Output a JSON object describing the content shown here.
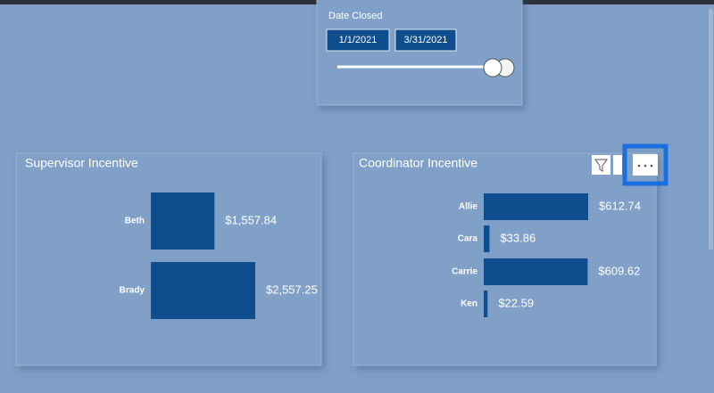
{
  "slicer": {
    "title": "Date Closed",
    "start": "1/1/2021",
    "end": "3/31/2021"
  },
  "chart_data": [
    {
      "type": "bar",
      "orientation": "horizontal",
      "title": "Supervisor Incentive",
      "categories": [
        "Beth",
        "Brady"
      ],
      "values": [
        1557.84,
        2557.25
      ],
      "value_labels": [
        "$1,557.84",
        "$2,557.25"
      ],
      "color": "#0f4e8e"
    },
    {
      "type": "bar",
      "orientation": "horizontal",
      "title": "Coordinator Incentive",
      "categories": [
        "Allie",
        "Cara",
        "Carrie",
        "Ken"
      ],
      "values": [
        612.74,
        33.86,
        609.62,
        22.59
      ],
      "value_labels": [
        "$612.74",
        "$33.86",
        "$609.62",
        "$22.59"
      ],
      "color": "#0f4e8e"
    }
  ]
}
